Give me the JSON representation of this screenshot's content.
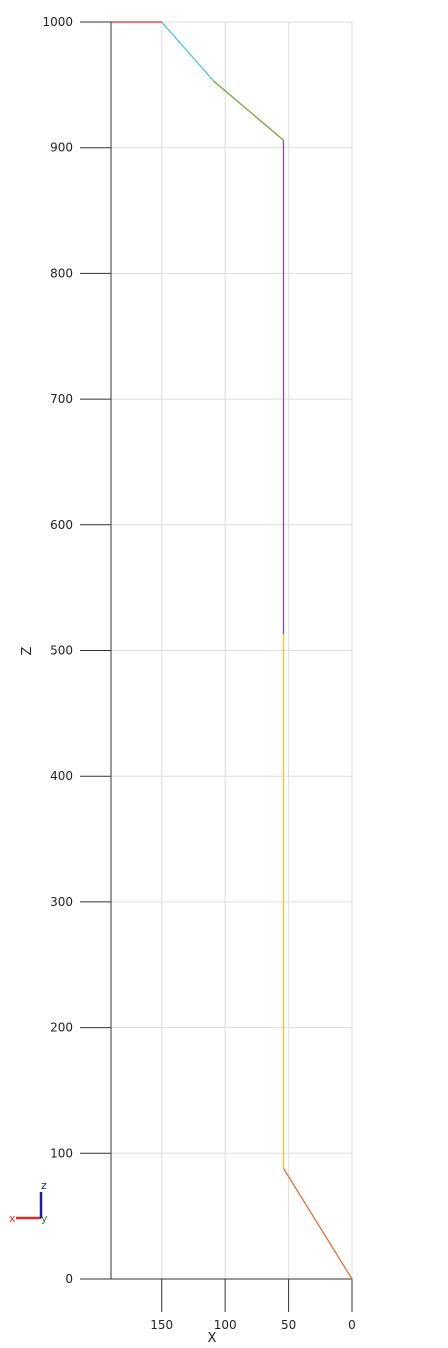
{
  "chart_data": {
    "type": "line",
    "xlabel": "X",
    "ylabel": "Z",
    "xlim": [
      0,
      190
    ],
    "ylim": [
      0,
      1000
    ],
    "x_reversed": true,
    "grid": true,
    "x_ticks": [
      150,
      100,
      50,
      0
    ],
    "y_ticks": [
      0,
      100,
      200,
      300,
      400,
      500,
      600,
      700,
      800,
      900,
      1000
    ],
    "series": [
      {
        "color": "#e2703a",
        "points": [
          [
            0,
            0
          ],
          [
            54,
            88
          ]
        ]
      },
      {
        "color": "#e8c31c",
        "points": [
          [
            54,
            88
          ],
          [
            54,
            513
          ]
        ]
      },
      {
        "color": "#8d4a9c",
        "points": [
          [
            54,
            513
          ],
          [
            54,
            906
          ]
        ]
      },
      {
        "color": "#7aa334",
        "points": [
          [
            54,
            906
          ],
          [
            109,
            953
          ]
        ]
      },
      {
        "color": "#4fc2e6",
        "points": [
          [
            109,
            953
          ],
          [
            150,
            1000
          ]
        ]
      },
      {
        "color": "#e02a2a",
        "points": [
          [
            150,
            1000
          ],
          [
            190,
            1000
          ]
        ]
      }
    ],
    "axis_triad": {
      "x_label": "x",
      "y_label": "y",
      "z_label": "z",
      "x_color": "#e02a2a",
      "y_color": "#2a8a2a",
      "z_color": "#1a1aaa"
    }
  }
}
